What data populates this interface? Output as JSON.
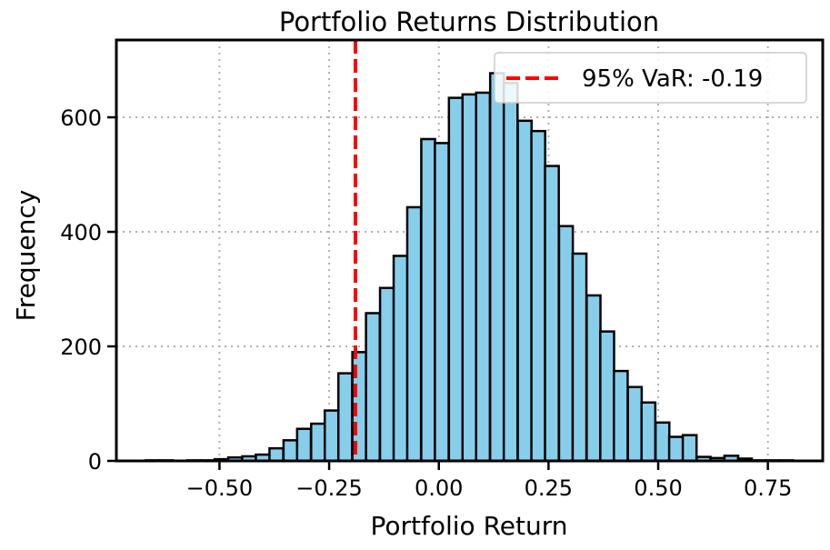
{
  "chart_data": {
    "type": "bar",
    "title": "Portfolio Returns Distribution",
    "xlabel": "Portfolio Return",
    "ylabel": "Frequency",
    "xlim": [
      -0.735,
      0.875
    ],
    "ylim": [
      0,
      735
    ],
    "xticks": [
      -0.5,
      -0.25,
      0.0,
      0.25,
      0.5,
      0.75
    ],
    "xtick_labels": [
      "−0.50",
      "−0.25",
      "0.00",
      "0.25",
      "0.50",
      "0.75"
    ],
    "yticks": [
      0,
      200,
      400,
      600
    ],
    "ytick_labels": [
      "0",
      "200",
      "400",
      "600"
    ],
    "grid": true,
    "bar_color": "#87ceeb",
    "bar_edge_color": "#000000",
    "bin_width": 0.0314,
    "bin_starts": [
      -0.668,
      -0.637,
      -0.605,
      -0.574,
      -0.543,
      -0.511,
      -0.48,
      -0.448,
      -0.417,
      -0.386,
      -0.354,
      -0.323,
      -0.291,
      -0.26,
      -0.229,
      -0.197,
      -0.166,
      -0.134,
      -0.103,
      -0.072,
      -0.04,
      -0.009,
      0.023,
      0.054,
      0.085,
      0.117,
      0.148,
      0.18,
      0.211,
      0.242,
      0.274,
      0.305,
      0.337,
      0.368,
      0.399,
      0.431,
      0.462,
      0.494,
      0.525,
      0.556,
      0.588,
      0.619,
      0.651,
      0.682,
      0.713,
      0.745,
      0.776
    ],
    "values": [
      1,
      1,
      0,
      1,
      1,
      3,
      6,
      8,
      11,
      22,
      36,
      56,
      65,
      88,
      153,
      190,
      258,
      302,
      358,
      443,
      562,
      555,
      634,
      640,
      643,
      677,
      660,
      594,
      576,
      515,
      410,
      362,
      289,
      226,
      157,
      129,
      102,
      67,
      42,
      45,
      7,
      5,
      9,
      4,
      1,
      1,
      1
    ],
    "var_line": {
      "x": -0.19,
      "color": "#ff0000",
      "label": "95% VaR: -0.19"
    },
    "legend": {
      "position": "top-right",
      "entries": [
        "95% VaR: -0.19"
      ]
    }
  }
}
